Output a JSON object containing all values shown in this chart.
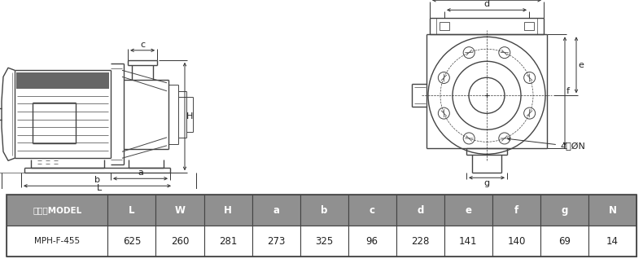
{
  "bg_color": "#ffffff",
  "table_header_bg": "#909090",
  "table_row_bg": "#ffffff",
  "table_border_color": "#444444",
  "header_text_color": "#ffffff",
  "row_text_color": "#222222",
  "headers": [
    "型式／MODEL",
    "L",
    "W",
    "H",
    "a",
    "b",
    "c",
    "d",
    "e",
    "f",
    "g",
    "N"
  ],
  "values": [
    "MPH-F-455",
    "625",
    "260",
    "281",
    "273",
    "325",
    "96",
    "228",
    "141",
    "140",
    "69",
    "14"
  ],
  "lc": "#444444",
  "dc": "#333333",
  "ac": "#222222",
  "lw_main": 1.0,
  "lw_dim": 0.7,
  "fs_label": 8.0
}
